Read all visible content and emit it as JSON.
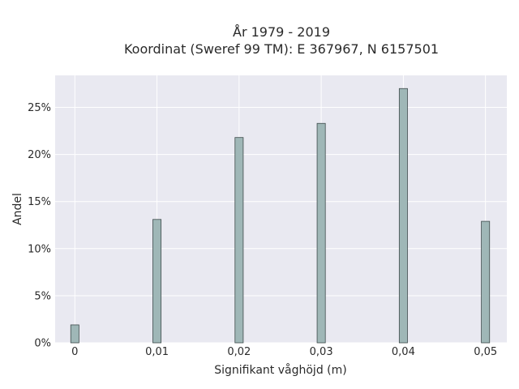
{
  "chart_data": {
    "type": "bar",
    "title_line1": "År 1979 - 2019",
    "title_line2": "Koordinat (Sweref 99 TM): E 367967, N 6157501",
    "xlabel": "Signifikant våghöjd (m)",
    "ylabel": "Andel",
    "x": [
      0,
      0.01,
      0.02,
      0.03,
      0.04,
      0.05
    ],
    "x_tick_labels": [
      "0",
      "0,01",
      "0,02",
      "0,03",
      "0,04",
      "0,05"
    ],
    "values": [
      1.9,
      13.1,
      21.8,
      23.3,
      27.0,
      12.9
    ],
    "y_ticks": [
      0,
      5,
      10,
      15,
      20,
      25
    ],
    "y_tick_labels": [
      "0%",
      "5%",
      "10%",
      "15%",
      "20%",
      "25%"
    ],
    "xlim": [
      -0.0024,
      0.0526
    ],
    "ylim": [
      0,
      28.4
    ],
    "grid": true,
    "colors": {
      "bar_fill": "#9fb7b7",
      "bar_stroke": "#3d4a4a",
      "plot_bg": "#e9e9f1",
      "grid": "#ffffff"
    }
  }
}
